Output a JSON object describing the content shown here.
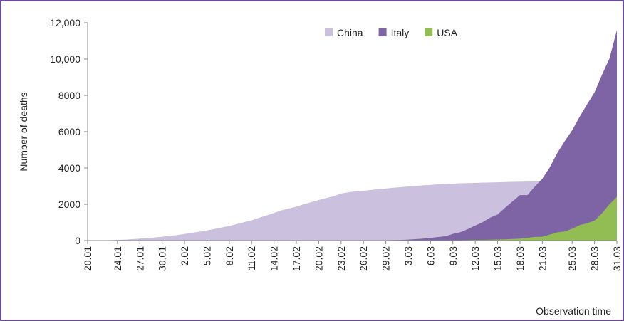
{
  "chart_data": {
    "type": "area",
    "y_label": "Number of deaths",
    "x_label": "Observation time",
    "categories": [
      "20.01",
      null,
      null,
      null,
      "24.01",
      null,
      null,
      "27.01",
      null,
      null,
      "30.01",
      null,
      null,
      "2.02",
      null,
      null,
      "5.02",
      null,
      null,
      "8.02",
      null,
      null,
      "11.02",
      null,
      null,
      "14.02",
      null,
      null,
      "17.02",
      null,
      null,
      "20.02",
      null,
      null,
      "23.02",
      null,
      null,
      "26.02",
      null,
      null,
      "29.02",
      null,
      null,
      "3.03",
      null,
      null,
      "6.03",
      null,
      null,
      "9.03",
      null,
      null,
      "12.03",
      null,
      null,
      "15.03",
      null,
      null,
      "18.03",
      null,
      null,
      "21.03",
      null,
      null,
      null,
      "25.03",
      null,
      null,
      "28.03",
      null,
      null,
      "31.03"
    ],
    "series": [
      {
        "name": "China",
        "color": "#cbc1de",
        "values": [
          6,
          9,
          17,
          25,
          41,
          56,
          80,
          106,
          132,
          170,
          213,
          259,
          304,
          361,
          425,
          490,
          562,
          636,
          722,
          811,
          908,
          1016,
          1113,
          1259,
          1380,
          1523,
          1665,
          1770,
          1868,
          2004,
          2118,
          2236,
          2345,
          2442,
          2592,
          2663,
          2715,
          2744,
          2788,
          2835,
          2870,
          2912,
          2943,
          2981,
          3012,
          3042,
          3070,
          3097,
          3119,
          3136,
          3158,
          3169,
          3176,
          3189,
          3199,
          3213,
          3226,
          3237,
          3245,
          3249,
          3253,
          3259,
          3274,
          3274,
          3281,
          3285,
          3291,
          3296,
          3299,
          3304,
          3308,
          3309
        ]
      },
      {
        "name": "Italy",
        "color": "#7f64a5",
        "values": [
          0,
          0,
          0,
          0,
          0,
          0,
          0,
          0,
          0,
          0,
          0,
          0,
          0,
          0,
          0,
          0,
          0,
          0,
          0,
          0,
          0,
          0,
          0,
          0,
          0,
          0,
          0,
          0,
          0,
          0,
          0,
          0,
          0,
          1,
          2,
          3,
          7,
          10,
          12,
          17,
          21,
          29,
          34,
          52,
          79,
          107,
          148,
          197,
          233,
          366,
          463,
          631,
          827,
          1016,
          1266,
          1441,
          1809,
          2158,
          2503,
          2503,
          2978,
          3405,
          4032,
          4825,
          5476,
          6077,
          6820,
          7503,
          8165,
          9134,
          10023,
          11591
        ]
      },
      {
        "name": "USA",
        "color": "#92bd52",
        "values": [
          0,
          0,
          0,
          0,
          0,
          0,
          0,
          0,
          0,
          0,
          0,
          0,
          0,
          0,
          0,
          0,
          0,
          0,
          0,
          0,
          0,
          0,
          0,
          0,
          0,
          0,
          0,
          0,
          0,
          0,
          0,
          0,
          0,
          0,
          0,
          0,
          0,
          0,
          0,
          0,
          0,
          1,
          6,
          9,
          11,
          12,
          14,
          17,
          19,
          22,
          26,
          31,
          38,
          41,
          50,
          57,
          68,
          86,
          109,
          150,
          200,
          210,
          330,
          450,
          500,
          650,
          850,
          950,
          1100,
          1500,
          2000,
          2400
        ]
      }
    ],
    "ylim": [
      0,
      12000
    ],
    "yticks": [
      0,
      2000,
      4000,
      6000,
      8000,
      {
        "value": 10000,
        "label": "10,000"
      },
      {
        "value": 12000,
        "label": "12,000"
      }
    ],
    "legend": "top"
  }
}
